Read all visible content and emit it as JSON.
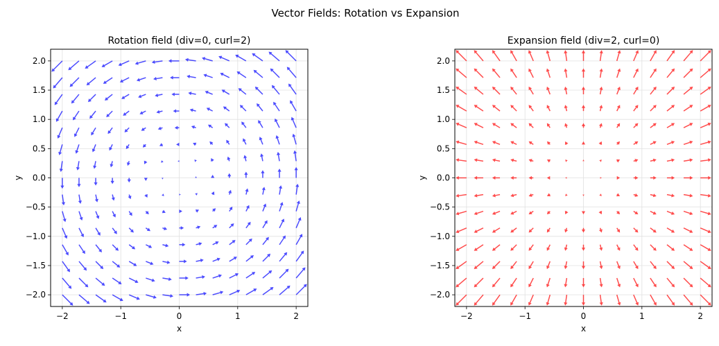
{
  "suptitle": "Vector Fields: Rotation vs Expansion",
  "chart_data": [
    {
      "type": "quiver",
      "title": "Rotation field (div=0, curl=2)",
      "xlabel": "x",
      "ylabel": "y",
      "xlim": [
        -2.2,
        2.2
      ],
      "ylim": [
        -2.2,
        2.2
      ],
      "xticks": [
        "−2",
        "−1",
        "0",
        "1",
        "2"
      ],
      "yticks": [
        "−2.0",
        "−1.5",
        "−1.0",
        "−0.5",
        "0.0",
        "0.5",
        "1.0",
        "1.5",
        "2.0"
      ],
      "grid": true,
      "grid_points": {
        "min": -2,
        "max": 2,
        "count": 15
      },
      "field": {
        "u": "-y",
        "v": "x"
      },
      "color": "#0000ff",
      "alpha": 0.7
    },
    {
      "type": "quiver",
      "title": "Expansion field (div=2, curl=0)",
      "xlabel": "x",
      "ylabel": "y",
      "xlim": [
        -2.2,
        2.2
      ],
      "ylim": [
        -2.2,
        2.2
      ],
      "xticks": [
        "−2",
        "−1",
        "0",
        "1",
        "2"
      ],
      "yticks": [
        "−2.0",
        "−1.5",
        "−1.0",
        "−0.5",
        "0.0",
        "0.5",
        "1.0",
        "1.5",
        "2.0"
      ],
      "grid": true,
      "grid_points": {
        "min": -2,
        "max": 2,
        "count": 15
      },
      "field": {
        "u": "x",
        "v": "y"
      },
      "color": "#ff0000",
      "alpha": 0.7
    }
  ]
}
